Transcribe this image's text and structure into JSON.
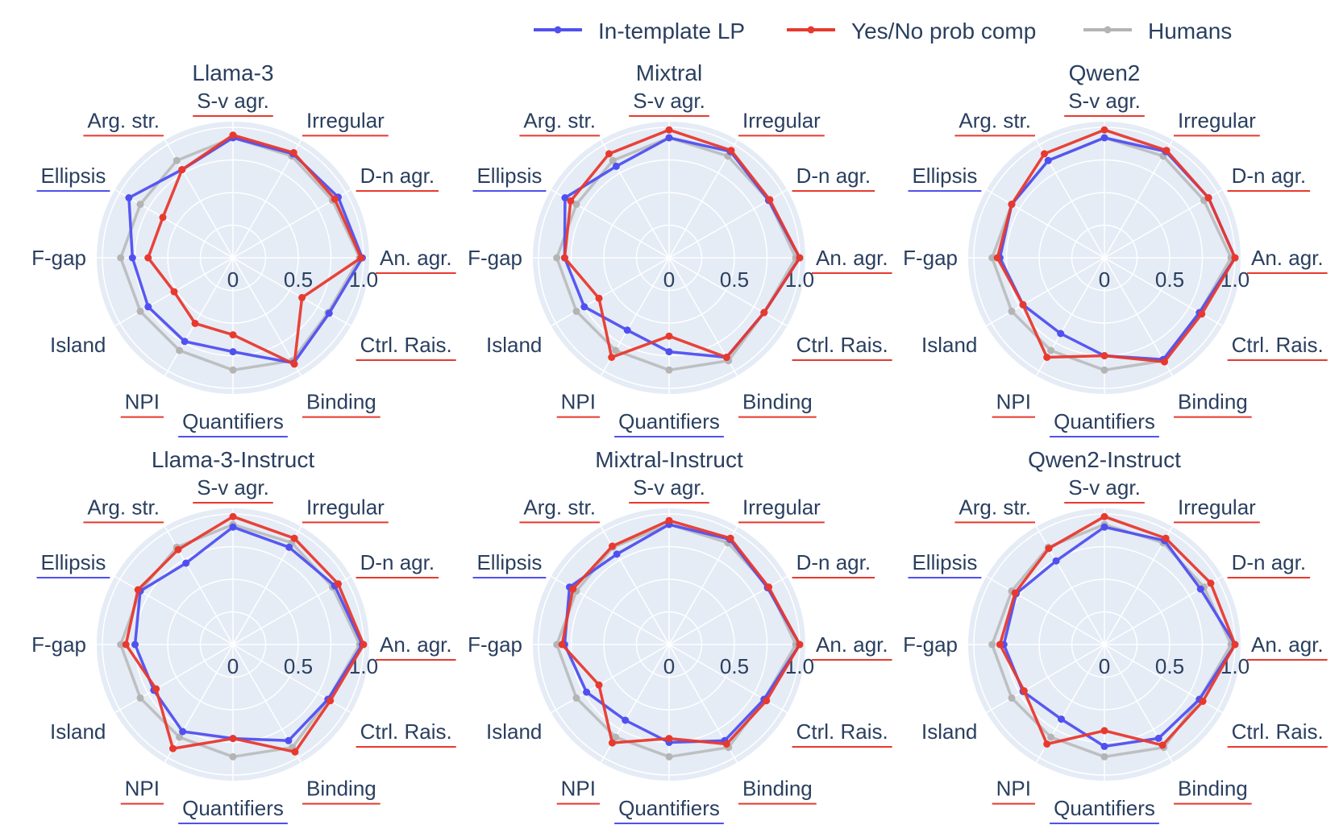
{
  "legend": {
    "entries": [
      {
        "name": "In-template LP",
        "color": "#5050f0"
      },
      {
        "name": "Yes/No prob comp",
        "color": "#e8392e"
      },
      {
        "name": "Humans",
        "color": "#b4b4b4"
      }
    ]
  },
  "colors": {
    "plot_bg": "#e5ecf6",
    "grid": "#ffffff",
    "text": "#2a3f5f",
    "blue_underline": "#5050f0",
    "red_underline": "#e8392e"
  },
  "chart_data": [
    {
      "type": "radar",
      "title": "Llama-3",
      "categories": [
        "S-v agr.",
        "Irregular",
        "D-n agr.",
        "An. agr.",
        "Ctrl. Rais.",
        "Binding",
        "Quantifiers",
        "NPI",
        "Island",
        "F-gap",
        "Ellipsis",
        "Arg. str."
      ],
      "category_underline": [
        "red",
        "red",
        "red",
        "red",
        "red",
        "red",
        "blue",
        "red",
        "none",
        "none",
        "blue",
        "red"
      ],
      "radial_range": [
        0,
        1.0
      ],
      "radial_ticks": [
        "0",
        "0.5",
        "1.0"
      ],
      "series": [
        {
          "name": "In-template LP",
          "values": [
            0.92,
            0.92,
            0.93,
            0.99,
            0.85,
            0.93,
            0.72,
            0.74,
            0.75,
            0.77,
            0.92,
            0.78
          ]
        },
        {
          "name": "Yes/No prob comp",
          "values": [
            0.94,
            0.93,
            0.9,
            0.98,
            0.61,
            0.94,
            0.59,
            0.58,
            0.52,
            0.65,
            0.62,
            0.78
          ]
        },
        {
          "name": "Humans",
          "values": [
            0.92,
            0.9,
            0.88,
            0.97,
            0.84,
            0.91,
            0.86,
            0.82,
            0.82,
            0.86,
            0.82,
            0.86
          ]
        }
      ]
    },
    {
      "type": "radar",
      "title": "Mixtral",
      "categories": [
        "S-v agr.",
        "Irregular",
        "D-n agr.",
        "An. agr.",
        "Ctrl. Rais.",
        "Binding",
        "Quantifiers",
        "NPI",
        "Island",
        "F-gap",
        "Ellipsis",
        "Arg. str."
      ],
      "category_underline": [
        "red",
        "red",
        "red",
        "red",
        "red",
        "red",
        "blue",
        "red",
        "none",
        "none",
        "blue",
        "red"
      ],
      "radial_range": [
        0,
        1.0
      ],
      "radial_ticks": [
        "0",
        "0.5",
        "1.0"
      ],
      "series": [
        {
          "name": "In-template LP",
          "values": [
            0.92,
            0.94,
            0.88,
            1.0,
            0.84,
            0.88,
            0.72,
            0.64,
            0.75,
            0.8,
            0.92,
            0.81
          ]
        },
        {
          "name": "Yes/No prob comp",
          "values": [
            0.98,
            0.95,
            0.89,
            1.0,
            0.84,
            0.88,
            0.6,
            0.88,
            0.62,
            0.8,
            0.87,
            0.92
          ]
        },
        {
          "name": "Humans",
          "values": [
            0.92,
            0.9,
            0.88,
            0.97,
            0.84,
            0.91,
            0.86,
            0.82,
            0.82,
            0.86,
            0.82,
            0.86
          ]
        }
      ]
    },
    {
      "type": "radar",
      "title": "Qwen2",
      "categories": [
        "S-v agr.",
        "Irregular",
        "D-n agr.",
        "An. agr.",
        "Ctrl. Rais.",
        "Binding",
        "Quantifiers",
        "NPI",
        "Island",
        "F-gap",
        "Ellipsis",
        "Arg. str."
      ],
      "category_underline": [
        "red",
        "red",
        "red",
        "red",
        "red",
        "red",
        "blue",
        "red",
        "none",
        "none",
        "blue",
        "red"
      ],
      "radial_range": [
        0,
        1.0
      ],
      "radial_ticks": [
        "0",
        "0.5",
        "1.0"
      ],
      "series": [
        {
          "name": "In-template LP",
          "values": [
            0.92,
            0.94,
            0.92,
            1.0,
            0.84,
            0.9,
            0.75,
            0.67,
            0.72,
            0.8,
            0.82,
            0.86
          ]
        },
        {
          "name": "Yes/No prob comp",
          "values": [
            0.98,
            0.95,
            0.92,
            1.0,
            0.86,
            0.92,
            0.75,
            0.88,
            0.72,
            0.82,
            0.82,
            0.92
          ]
        },
        {
          "name": "Humans",
          "values": [
            0.92,
            0.9,
            0.88,
            0.97,
            0.84,
            0.91,
            0.86,
            0.82,
            0.82,
            0.86,
            0.82,
            0.86
          ]
        }
      ]
    },
    {
      "type": "radar",
      "title": "Llama-3-Instruct",
      "categories": [
        "S-v agr.",
        "Irregular",
        "D-n agr.",
        "An. agr.",
        "Ctrl. Rais.",
        "Binding",
        "Quantifiers",
        "NPI",
        "Island",
        "F-gap",
        "Ellipsis",
        "Arg. str."
      ],
      "category_underline": [
        "red",
        "red",
        "red",
        "red",
        "red",
        "red",
        "blue",
        "red",
        "none",
        "none",
        "blue",
        "red"
      ],
      "radial_range": [
        0,
        1.0
      ],
      "radial_ticks": [
        "0",
        "0.5",
        "1.0"
      ],
      "series": [
        {
          "name": "In-template LP",
          "values": [
            0.9,
            0.86,
            0.9,
            0.99,
            0.84,
            0.85,
            0.72,
            0.77,
            0.7,
            0.75,
            0.82,
            0.72
          ]
        },
        {
          "name": "Yes/No prob comp",
          "values": [
            0.98,
            0.94,
            0.93,
            1.0,
            0.86,
            0.95,
            0.72,
            0.92,
            0.68,
            0.82,
            0.84,
            0.84
          ]
        },
        {
          "name": "Humans",
          "values": [
            0.92,
            0.9,
            0.88,
            0.97,
            0.84,
            0.91,
            0.86,
            0.82,
            0.82,
            0.86,
            0.82,
            0.86
          ]
        }
      ]
    },
    {
      "type": "radar",
      "title": "Mixtral-Instruct",
      "categories": [
        "S-v agr.",
        "Irregular",
        "D-n agr.",
        "An. agr.",
        "Ctrl. Rais.",
        "Binding",
        "Quantifiers",
        "NPI",
        "Island",
        "F-gap",
        "Ellipsis",
        "Arg. str."
      ],
      "category_underline": [
        "red",
        "red",
        "red",
        "red",
        "red",
        "red",
        "blue",
        "red",
        "none",
        "none",
        "blue",
        "red"
      ],
      "radial_range": [
        0,
        1.0
      ],
      "radial_ticks": [
        "0",
        "0.5",
        "1.0"
      ],
      "series": [
        {
          "name": "In-template LP",
          "values": [
            0.92,
            0.93,
            0.87,
            1.0,
            0.84,
            0.85,
            0.75,
            0.67,
            0.73,
            0.8,
            0.88,
            0.8
          ]
        },
        {
          "name": "Yes/No prob comp",
          "values": [
            0.95,
            0.94,
            0.88,
            1.0,
            0.86,
            0.88,
            0.72,
            0.87,
            0.62,
            0.82,
            0.85,
            0.87
          ]
        },
        {
          "name": "Humans",
          "values": [
            0.92,
            0.9,
            0.88,
            0.97,
            0.84,
            0.91,
            0.86,
            0.82,
            0.82,
            0.86,
            0.82,
            0.86
          ]
        }
      ]
    },
    {
      "type": "radar",
      "title": "Qwen2-Instruct",
      "categories": [
        "S-v agr.",
        "Irregular",
        "D-n agr.",
        "An. agr.",
        "Ctrl. Rais.",
        "Binding",
        "Quantifiers",
        "NPI",
        "Island",
        "F-gap",
        "Ellipsis",
        "Arg. str."
      ],
      "category_underline": [
        "red",
        "red",
        "red",
        "red",
        "red",
        "red",
        "blue",
        "red",
        "none",
        "none",
        "blue",
        "red"
      ],
      "radial_range": [
        0,
        1.0
      ],
      "radial_ticks": [
        "0",
        "0.5",
        "1.0"
      ],
      "series": [
        {
          "name": "In-template LP",
          "values": [
            0.9,
            0.92,
            0.85,
            1.0,
            0.84,
            0.83,
            0.78,
            0.66,
            0.72,
            0.77,
            0.78,
            0.74
          ]
        },
        {
          "name": "Yes/No prob comp",
          "values": [
            0.98,
            0.94,
            0.94,
            1.0,
            0.87,
            0.89,
            0.66,
            0.88,
            0.71,
            0.8,
            0.79,
            0.85
          ]
        },
        {
          "name": "Humans",
          "values": [
            0.92,
            0.9,
            0.88,
            0.97,
            0.84,
            0.91,
            0.86,
            0.82,
            0.82,
            0.86,
            0.82,
            0.86
          ]
        }
      ]
    }
  ]
}
